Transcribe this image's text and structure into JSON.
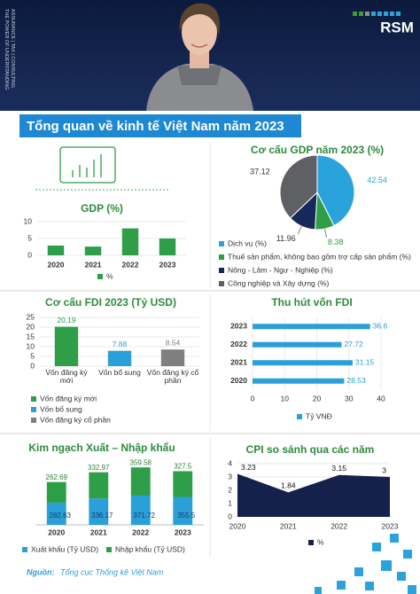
{
  "header": {
    "tagline": "THE POWER OF UNDERSTANDING",
    "tagline2": "ASSURANCE | TAX | CONSULTING",
    "logo": "RSM"
  },
  "title": "Tổng quan về kinh tế Việt Nam năm 2023",
  "chart_data": [
    {
      "type": "bar",
      "title": "GDP (%)",
      "categories": [
        "2020",
        "2021",
        "2022",
        "2023"
      ],
      "series": [
        {
          "name": "%",
          "color": "#2e9e48",
          "values": [
            2.9,
            2.6,
            8.0,
            5.0
          ]
        }
      ],
      "ylim": [
        0,
        10
      ],
      "yticks": [
        0,
        5,
        10
      ],
      "grid": true
    },
    {
      "type": "pie",
      "title": "Cơ cấu GDP năm 2023 (%)",
      "categories": [
        "Dịch vụ (%)",
        "Thuế sản phẩm, không bao gồm trợ cấp sản phẩm (%)",
        "Nông - Lâm - Ngư - Nghiệp (%)",
        "Công nghiệp và Xây dựng (%)"
      ],
      "values": [
        42.54,
        8.38,
        11.96,
        37.12
      ],
      "colors": [
        "#2aa3dd",
        "#2e9e48",
        "#16295c",
        "#5f6063"
      ]
    },
    {
      "type": "bar",
      "title": "Cơ cấu FDI 2023 (Tỷ USD)",
      "categories": [
        "Vốn đăng ký mới",
        "Vốn bổ sung",
        "Vốn đăng ký cổ phần"
      ],
      "values": [
        20.19,
        7.88,
        8.54
      ],
      "colors": [
        "#2e9e48",
        "#2a9fd8",
        "#7f7f7f"
      ],
      "ylim": [
        0,
        25
      ],
      "yticks": [
        0,
        5,
        10,
        15,
        20,
        25
      ],
      "grid": true,
      "data_labels": true
    },
    {
      "type": "bar",
      "orientation": "horizontal",
      "title": "Thu hút vốn FDI",
      "categories": [
        "2023",
        "2022",
        "2021",
        "2020"
      ],
      "series": [
        {
          "name": "Tỷ VNĐ",
          "color": "#2a9fd8",
          "values": [
            36.6,
            27.72,
            31.15,
            28.53
          ]
        }
      ],
      "xlim": [
        0,
        40
      ],
      "xticks": [
        0,
        10,
        20,
        30,
        40
      ],
      "grid": true,
      "data_labels": true
    },
    {
      "type": "stacked_bar",
      "title": "Kim ngạch Xuất – Nhập khẩu",
      "categories": [
        "2020",
        "2021",
        "2022",
        "2023"
      ],
      "series": [
        {
          "name": "Xuất khẩu (Tỷ USD)",
          "color": "#2a9fd8",
          "values": [
            282.63,
            336.17,
            371.72,
            355.5
          ]
        },
        {
          "name": "Nhập khẩu (Tỷ USD)",
          "color": "#2e9e48",
          "values": [
            262.69,
            332.97,
            359.58,
            327.5
          ]
        }
      ],
      "data_labels": true
    },
    {
      "type": "area",
      "title": "CPI so sánh qua các năm",
      "categories": [
        "2020",
        "2021",
        "2022",
        "2023"
      ],
      "series": [
        {
          "name": "%",
          "color": "#15214a",
          "values": [
            3.23,
            1.84,
            3.15,
            3
          ]
        }
      ],
      "ylim": [
        0,
        4
      ],
      "yticks": [
        0,
        1,
        2,
        3,
        4
      ],
      "grid": true,
      "data_labels": true
    }
  ],
  "footer": {
    "label": "Nguồn:",
    "text": "Tổng cục Thống kê Việt Nam"
  }
}
